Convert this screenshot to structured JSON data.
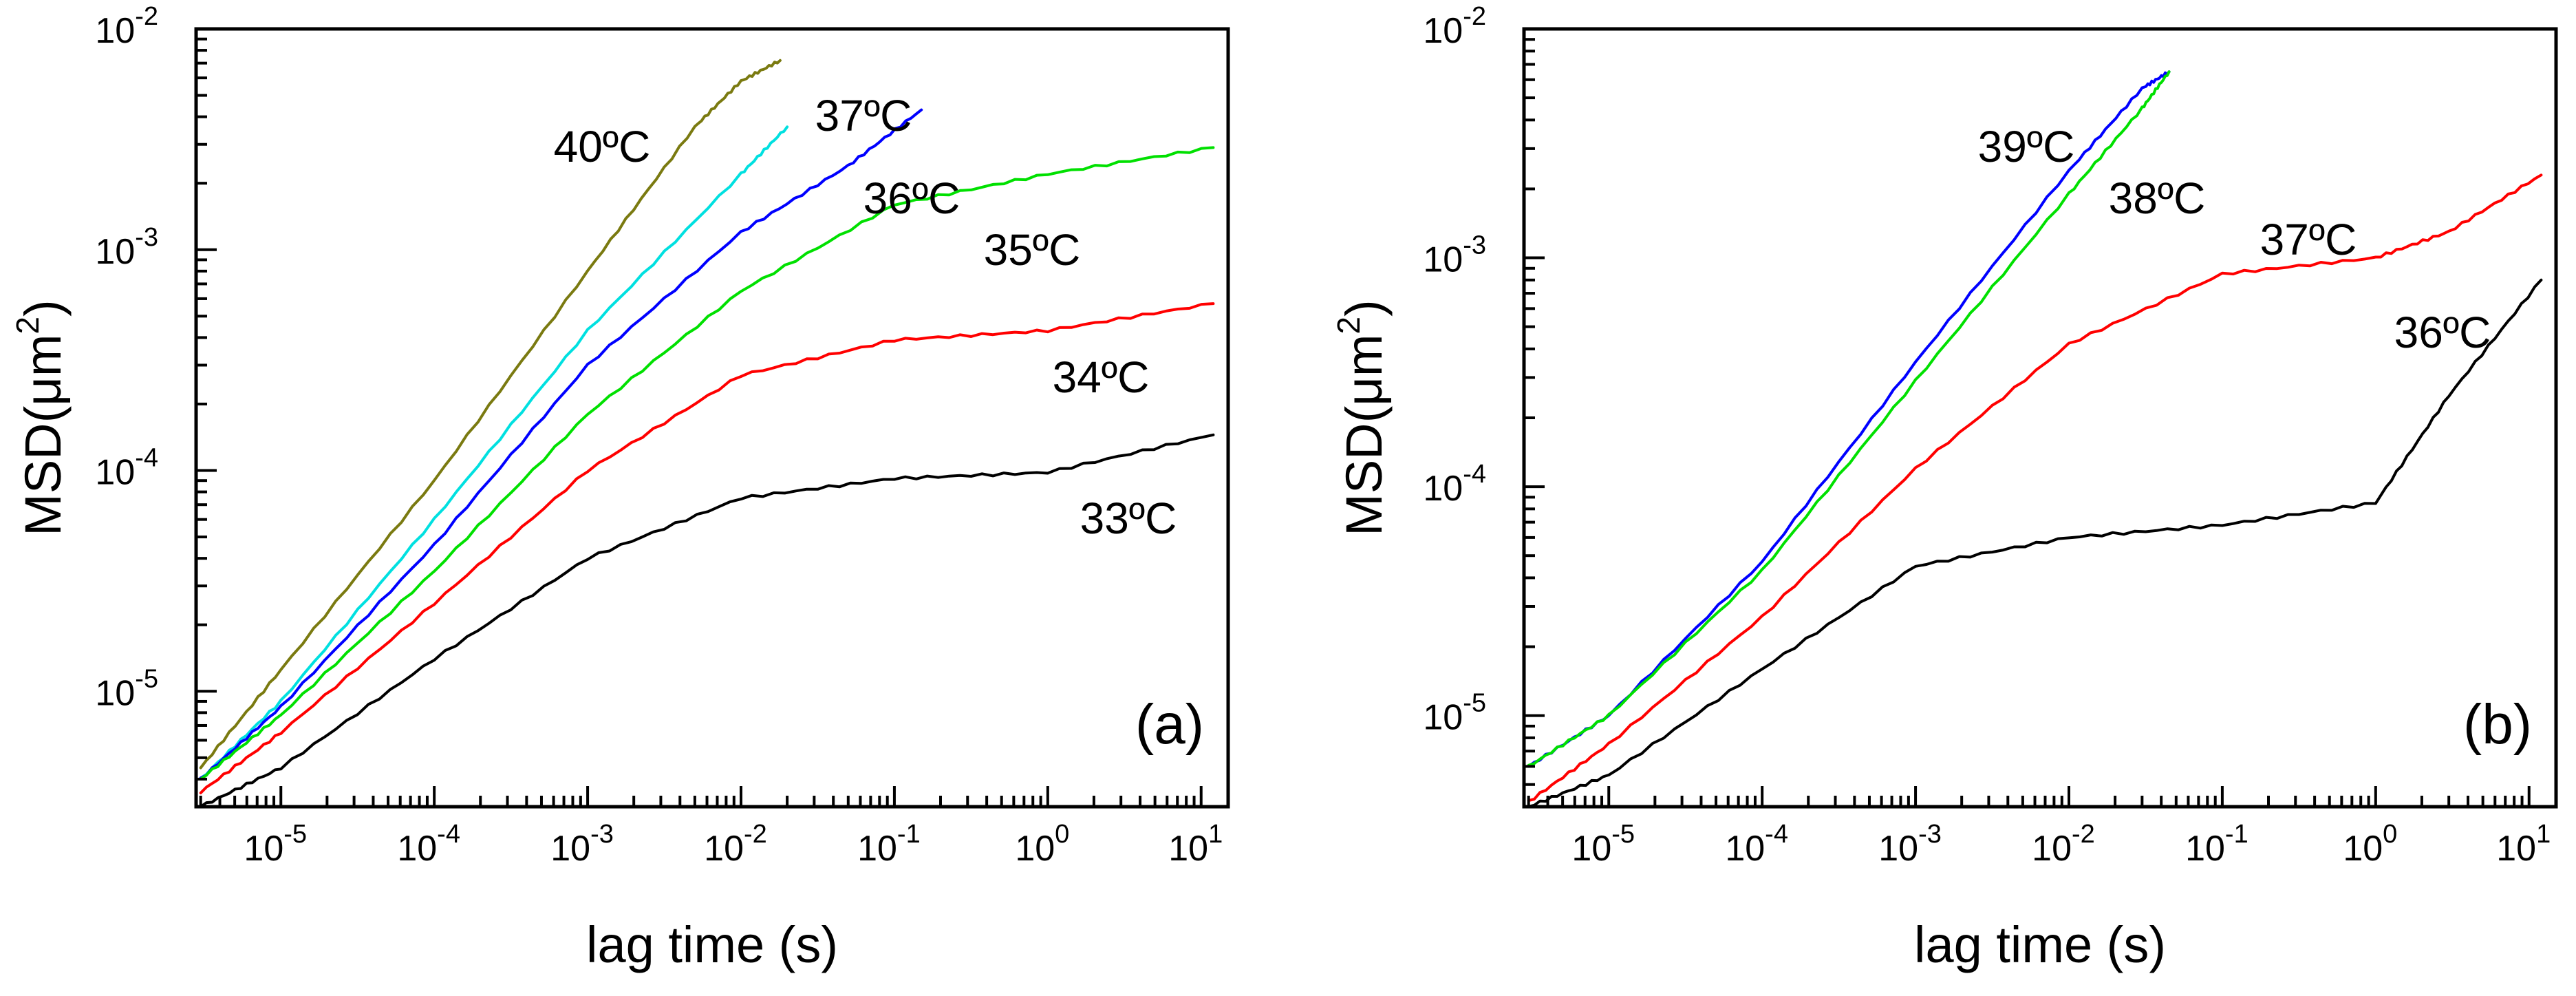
{
  "chart_data": [
    {
      "type": "line",
      "panel_label": "(a)",
      "xlabel": "lag time (s)",
      "ylabel": "MSD(μm",
      "ylabel_sup": "2",
      "ylabel_close": ")",
      "x_scale": "log",
      "y_scale": "log",
      "xlim": [
        2.8e-06,
        15
      ],
      "ylim": [
        3e-06,
        0.01
      ],
      "x_ticks": [
        {
          "value": 1e-05,
          "base": "10",
          "exp": "-5"
        },
        {
          "value": 0.0001,
          "base": "10",
          "exp": "-4"
        },
        {
          "value": 0.001,
          "base": "10",
          "exp": "-3"
        },
        {
          "value": 0.01,
          "base": "10",
          "exp": "-2"
        },
        {
          "value": 0.1,
          "base": "10",
          "exp": "-1"
        },
        {
          "value": 1,
          "base": "10",
          "exp": "0"
        },
        {
          "value": 10,
          "base": "10",
          "exp": "1"
        }
      ],
      "y_ticks": [
        {
          "value": 1e-05,
          "base": "10",
          "exp": "-5"
        },
        {
          "value": 0.0001,
          "base": "10",
          "exp": "-4"
        },
        {
          "value": 0.001,
          "base": "10",
          "exp": "-3"
        },
        {
          "value": 0.01,
          "base": "10",
          "exp": "-2"
        }
      ],
      "series": [
        {
          "name": "40ºC",
          "label": "40ºC",
          "color": "#7a7a10",
          "x": [
            3e-06,
            1e-05,
            0.0001,
            0.001,
            0.005,
            0.01,
            0.018
          ],
          "y": [
            4.5e-06,
            1.25e-05,
            9e-05,
            0.0008,
            0.0036,
            0.0058,
            0.0072
          ]
        },
        {
          "name": "37ºC",
          "label": "37ºC",
          "color": "#00e0e0",
          "x": [
            3e-06,
            1e-05,
            0.0001,
            0.001,
            0.01,
            0.02
          ],
          "y": [
            4e-06,
            9e-06,
            6e-05,
            0.00043,
            0.0022,
            0.0036
          ]
        },
        {
          "name": "36ºC",
          "label": "36ºC",
          "color": "#0000ff",
          "x": [
            3e-06,
            1e-05,
            0.0001,
            0.001,
            0.01,
            0.05,
            0.15
          ],
          "y": [
            4e-06,
            8.5e-06,
            4.6e-05,
            0.0003,
            0.0012,
            0.0024,
            0.0043
          ]
        },
        {
          "name": "35ºC",
          "label": "35ºC",
          "color": "#00e000",
          "x": [
            3e-06,
            1e-05,
            0.0001,
            0.001,
            0.01,
            0.1,
            1,
            12
          ],
          "y": [
            4e-06,
            7.8e-06,
            3.5e-05,
            0.00018,
            0.00065,
            0.0016,
            0.0022,
            0.0029
          ]
        },
        {
          "name": "34ºC",
          "label": "34ºC",
          "color": "#ff0000",
          "x": [
            3e-06,
            1e-05,
            0.0001,
            0.001,
            0.01,
            0.1,
            1,
            12
          ],
          "y": [
            3.5e-06,
            6.5e-06,
            2.5e-05,
            0.0001,
            0.00027,
            0.00039,
            0.00043,
            0.00057
          ]
        },
        {
          "name": "33ºC",
          "label": "33ºC",
          "color": "#000000",
          "x": [
            3e-06,
            1e-05,
            0.0001,
            0.001,
            0.01,
            0.1,
            1,
            12
          ],
          "y": [
            3e-06,
            4.5e-06,
            1.4e-05,
            4e-05,
            7.5e-05,
            9.2e-05,
            9.8e-05,
            0.000145
          ]
        }
      ]
    },
    {
      "type": "line",
      "panel_label": "(b)",
      "xlabel": "lag time (s)",
      "ylabel": "MSD(μm",
      "ylabel_sup": "2",
      "ylabel_close": ")",
      "x_scale": "log",
      "y_scale": "log",
      "xlim": [
        2.8e-06,
        15
      ],
      "ylim": [
        4e-06,
        0.01
      ],
      "x_ticks": [
        {
          "value": 1e-05,
          "base": "10",
          "exp": "-5"
        },
        {
          "value": 0.0001,
          "base": "10",
          "exp": "-4"
        },
        {
          "value": 0.001,
          "base": "10",
          "exp": "-3"
        },
        {
          "value": 0.01,
          "base": "10",
          "exp": "-2"
        },
        {
          "value": 0.1,
          "base": "10",
          "exp": "-1"
        },
        {
          "value": 1,
          "base": "10",
          "exp": "0"
        },
        {
          "value": 10,
          "base": "10",
          "exp": "1"
        }
      ],
      "y_ticks": [
        {
          "value": 1e-05,
          "base": "10",
          "exp": "-5"
        },
        {
          "value": 0.0001,
          "base": "10",
          "exp": "-4"
        },
        {
          "value": 0.001,
          "base": "10",
          "exp": "-3"
        },
        {
          "value": 0.01,
          "base": "10",
          "exp": "-2"
        }
      ],
      "series": [
        {
          "name": "39ºC",
          "label": "39ºC",
          "color": "#0000ff",
          "x": [
            3e-06,
            1e-05,
            0.0001,
            0.001,
            0.01,
            0.03,
            0.045
          ],
          "y": [
            6e-06,
            1e-05,
            4.7e-05,
            0.00035,
            0.0024,
            0.0055,
            0.0065
          ]
        },
        {
          "name": "38ºC",
          "label": "38ºC",
          "color": "#00e000",
          "x": [
            3e-06,
            1e-05,
            0.0001,
            0.001,
            0.01,
            0.03,
            0.045
          ],
          "y": [
            6e-06,
            1e-05,
            4.3e-05,
            0.00029,
            0.0019,
            0.0045,
            0.0065
          ]
        },
        {
          "name": "37ºC",
          "label": "37ºC",
          "color": "#ff0000",
          "x": [
            3e-06,
            1e-05,
            0.0001,
            0.001,
            0.01,
            0.1,
            1,
            3,
            12
          ],
          "y": [
            4.2e-06,
            7.5e-06,
            2.7e-05,
            0.00012,
            0.00042,
            0.00085,
            0.001,
            0.0013,
            0.0023
          ]
        },
        {
          "name": "36ºC",
          "label": "36ºC",
          "color": "#000000",
          "x": [
            3e-06,
            1e-05,
            0.0001,
            0.001,
            0.01,
            0.1,
            1,
            3,
            12
          ],
          "y": [
            4e-06,
            5.5e-06,
            1.6e-05,
            4.5e-05,
            6e-05,
            6.8e-05,
            8.5e-05,
            0.00025,
            0.0008
          ]
        }
      ]
    }
  ]
}
